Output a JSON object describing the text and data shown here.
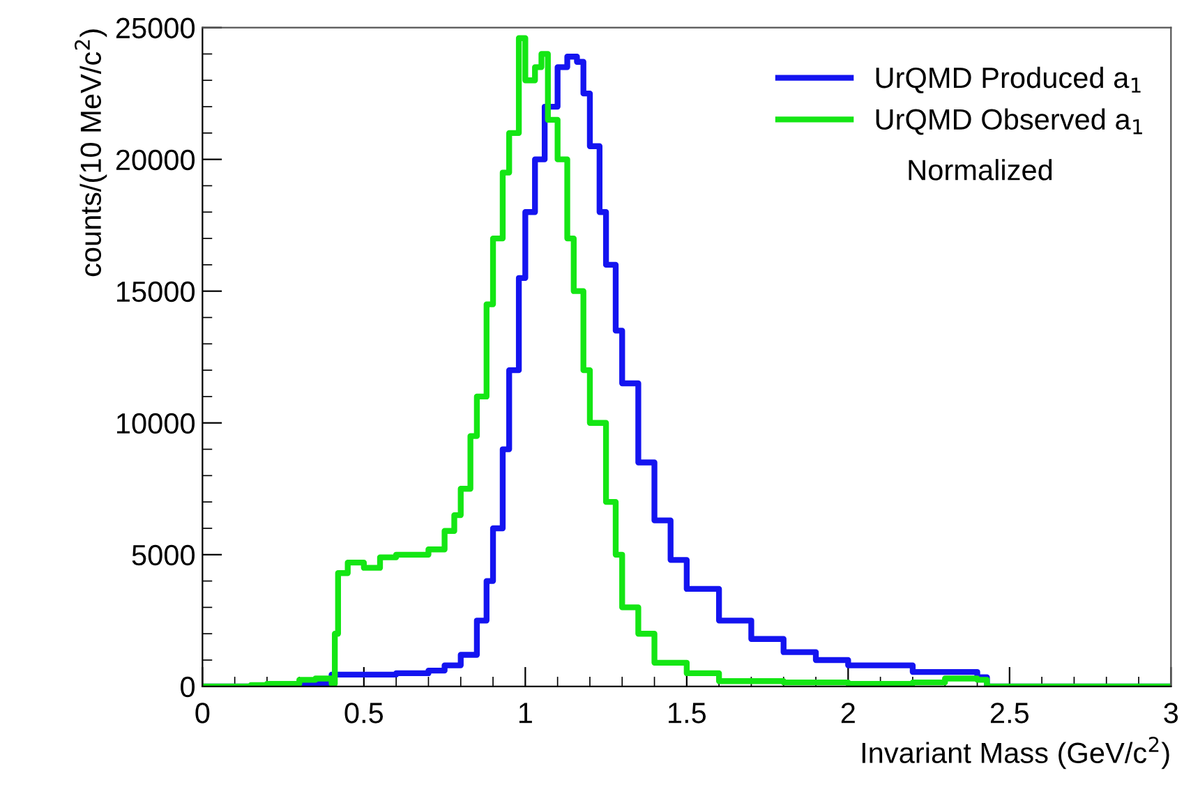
{
  "chart_data": {
    "type": "step",
    "xlabel": "Invariant Mass (GeV/c$^{2}$)",
    "ylabel": "counts/(10 MeV/c$^{2}$)",
    "xlim": [
      0,
      3
    ],
    "ylim": [
      0,
      25000
    ],
    "xticks": [
      0,
      0.5,
      1,
      1.5,
      2,
      2.5,
      3
    ],
    "yticks": [
      0,
      5000,
      10000,
      15000,
      20000,
      25000
    ],
    "grid": false,
    "legend": "top right",
    "annotations": [
      "Normalized"
    ],
    "series": [
      {
        "name": "UrQMD Produced a$_{1}$",
        "color": "#1414f0",
        "x": [
          0,
          0.3,
          0.4,
          0.5,
          0.6,
          0.7,
          0.75,
          0.8,
          0.85,
          0.88,
          0.9,
          0.93,
          0.95,
          0.98,
          1.0,
          1.03,
          1.06,
          1.1,
          1.13,
          1.16,
          1.18,
          1.2,
          1.23,
          1.25,
          1.28,
          1.3,
          1.35,
          1.4,
          1.45,
          1.5,
          1.6,
          1.7,
          1.8,
          1.9,
          2.0,
          2.2,
          2.4,
          2.43,
          3.0
        ],
        "values": [
          0,
          100,
          450,
          450,
          500,
          600,
          800,
          1200,
          2500,
          4000,
          6000,
          9000,
          12000,
          15500,
          18000,
          20000,
          22000,
          23500,
          23900,
          23700,
          22500,
          20500,
          18000,
          16000,
          13500,
          11500,
          8500,
          6300,
          4800,
          3700,
          2500,
          1800,
          1300,
          1000,
          800,
          550,
          350,
          0,
          0
        ]
      },
      {
        "name": "UrQMD Observed a$_{1}$",
        "color": "#14e614",
        "x": [
          0,
          0.15,
          0.2,
          0.3,
          0.35,
          0.4,
          0.41,
          0.42,
          0.45,
          0.5,
          0.55,
          0.6,
          0.65,
          0.7,
          0.75,
          0.78,
          0.8,
          0.83,
          0.85,
          0.88,
          0.9,
          0.93,
          0.95,
          0.98,
          1.0,
          1.03,
          1.05,
          1.07,
          1.1,
          1.13,
          1.15,
          1.18,
          1.2,
          1.25,
          1.28,
          1.3,
          1.35,
          1.4,
          1.5,
          1.6,
          1.8,
          2.0,
          2.2,
          2.3,
          2.4,
          2.43,
          3.0
        ],
        "values": [
          0,
          50,
          100,
          250,
          300,
          100,
          2000,
          4300,
          4700,
          4500,
          4900,
          5000,
          5000,
          5200,
          5900,
          6500,
          7500,
          9500,
          11000,
          14500,
          17000,
          19500,
          21000,
          24600,
          23000,
          23500,
          24000,
          21500,
          20000,
          17000,
          15000,
          12000,
          10000,
          7000,
          5000,
          3000,
          2000,
          900,
          500,
          200,
          150,
          100,
          150,
          300,
          250,
          0,
          0
        ]
      }
    ]
  }
}
